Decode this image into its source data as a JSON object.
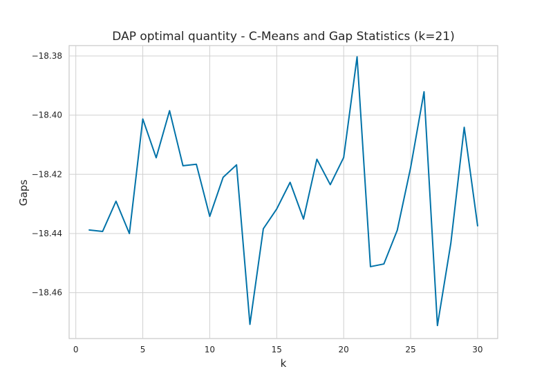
{
  "chart_data": {
    "type": "line",
    "title": "DAP optimal quantity - C-Means and Gap Statistics (k=21)",
    "xlabel": "k",
    "ylabel": "Gaps",
    "xlim": [
      -0.5,
      31.5
    ],
    "ylim": [
      -18.4755,
      -18.3765
    ],
    "xticks": [
      0,
      5,
      10,
      15,
      20,
      25,
      30
    ],
    "xtick_labels": [
      "0",
      "5",
      "10",
      "15",
      "20",
      "25",
      "30"
    ],
    "yticks": [
      -18.38,
      -18.4,
      -18.42,
      -18.44,
      -18.46
    ],
    "ytick_labels": [
      "−18.38",
      "−18.40",
      "−18.42",
      "−18.44",
      "−18.46"
    ],
    "grid": true,
    "line_color": "#0072a8",
    "x": [
      1,
      2,
      3,
      4,
      5,
      6,
      7,
      8,
      9,
      10,
      11,
      12,
      13,
      14,
      15,
      16,
      17,
      18,
      19,
      20,
      21,
      22,
      23,
      24,
      25,
      26,
      27,
      28,
      29,
      30
    ],
    "y": [
      -18.4388,
      -18.4393,
      -18.4291,
      -18.44,
      -18.4013,
      -18.4144,
      -18.3985,
      -18.4171,
      -18.4166,
      -18.4342,
      -18.421,
      -18.4168,
      -18.4707,
      -18.4384,
      -18.4317,
      -18.4227,
      -18.4351,
      -18.4149,
      -18.4235,
      -18.4143,
      -18.3803,
      -18.4512,
      -18.4503,
      -18.4389,
      -18.4177,
      -18.3921,
      -18.4711,
      -18.4433,
      -18.4041,
      -18.4374
    ]
  }
}
